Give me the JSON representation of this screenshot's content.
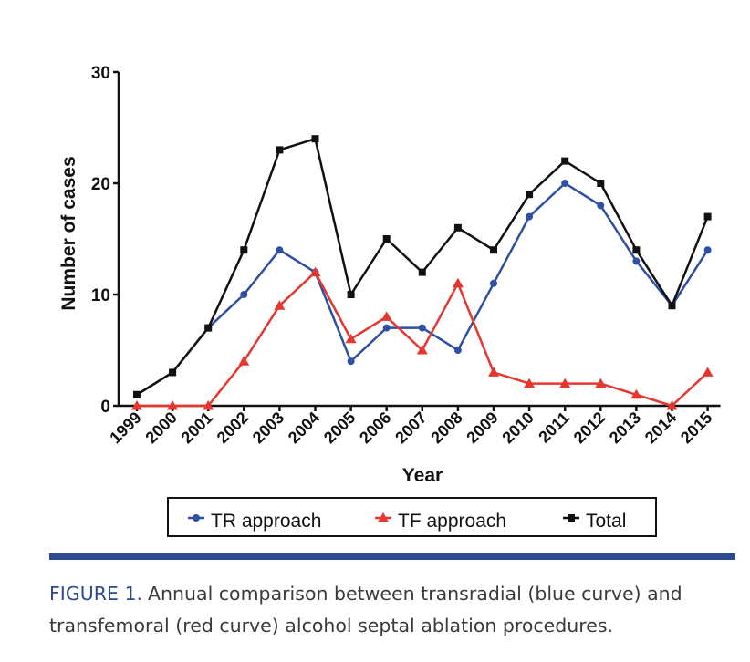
{
  "chart_data": {
    "type": "line",
    "categories": [
      "1999",
      "2000",
      "2001",
      "2002",
      "2003",
      "2004",
      "2005",
      "2006",
      "2007",
      "2008",
      "2009",
      "2010",
      "2011",
      "2012",
      "2013",
      "2014",
      "2015"
    ],
    "series": [
      {
        "name": "TR approach",
        "color": "#2f4fa2",
        "marker": "circle",
        "values": [
          1,
          3,
          7,
          10,
          14,
          12,
          4,
          7,
          7,
          5,
          11,
          17,
          20,
          18,
          13,
          9,
          14
        ]
      },
      {
        "name": "TF approach",
        "color": "#e53630",
        "marker": "triangle",
        "values": [
          0,
          0,
          0,
          4,
          9,
          12,
          6,
          8,
          5,
          11,
          3,
          2,
          2,
          2,
          1,
          0,
          3
        ]
      },
      {
        "name": "Total",
        "color": "#111111",
        "marker": "square",
        "values": [
          1,
          3,
          7,
          14,
          23,
          24,
          10,
          15,
          12,
          16,
          14,
          19,
          22,
          20,
          14,
          9,
          17
        ]
      }
    ],
    "xlabel": "Year",
    "ylabel": "Number of cases",
    "ylim": [
      0,
      30
    ],
    "yticks": [
      "0",
      "10",
      "20",
      "30"
    ],
    "legend_position": "bottom"
  },
  "caption": {
    "label": "FIGURE 1.",
    "text": "Annual comparison between transradial (blue curve) and transfemoral (red curve) alcohol septal ablation procedures."
  }
}
